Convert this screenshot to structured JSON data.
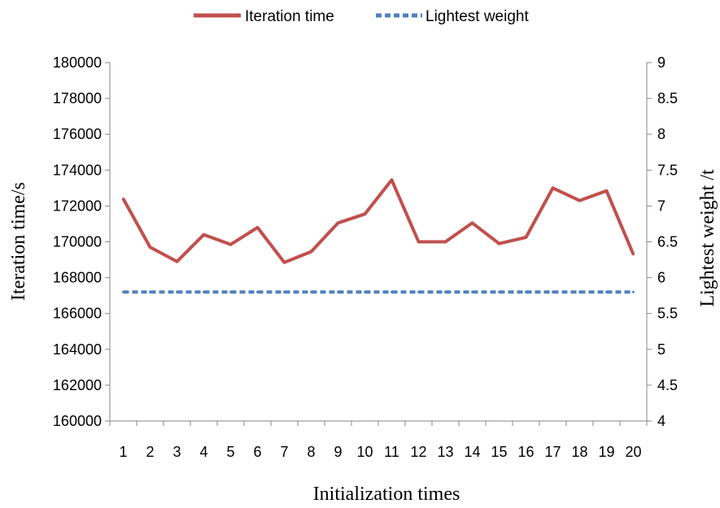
{
  "chart_data": {
    "type": "line",
    "title": "",
    "xlabel": "Initialization times",
    "ylabel_left": "Iteration time/s",
    "ylabel_right": "Lightest weight /t",
    "categories": [
      "1",
      "2",
      "3",
      "4",
      "5",
      "6",
      "7",
      "8",
      "9",
      "10",
      "11",
      "12",
      "13",
      "14",
      "15",
      "16",
      "17",
      "18",
      "19",
      "20"
    ],
    "y_left": {
      "lim": [
        160000,
        180000
      ],
      "ticks": [
        "160000",
        "162000",
        "164000",
        "166000",
        "168000",
        "170000",
        "172000",
        "174000",
        "176000",
        "178000",
        "180000"
      ]
    },
    "y_right": {
      "lim": [
        4,
        9
      ],
      "ticks": [
        "4",
        "4.5",
        "5",
        "5.5",
        "6",
        "6.5",
        "7",
        "7.5",
        "8",
        "8.5",
        "9"
      ]
    },
    "series": [
      {
        "name": "Iteration time",
        "axis": "left",
        "color": "#C0504D",
        "style": "solid",
        "values": [
          172400,
          169700,
          168900,
          170400,
          169850,
          170800,
          168850,
          169450,
          171050,
          171550,
          173450,
          170000,
          170000,
          171050,
          169900,
          170250,
          173000,
          172300,
          172850,
          169300
        ]
      },
      {
        "name": "Lightest weight",
        "axis": "right",
        "color": "#4F81BD",
        "style": "dashed",
        "values": [
          5.8,
          5.8,
          5.8,
          5.8,
          5.8,
          5.8,
          5.8,
          5.8,
          5.8,
          5.8,
          5.8,
          5.8,
          5.8,
          5.8,
          5.8,
          5.8,
          5.8,
          5.8,
          5.8,
          5.8
        ]
      }
    ],
    "legend": "top-center",
    "grid": false
  }
}
